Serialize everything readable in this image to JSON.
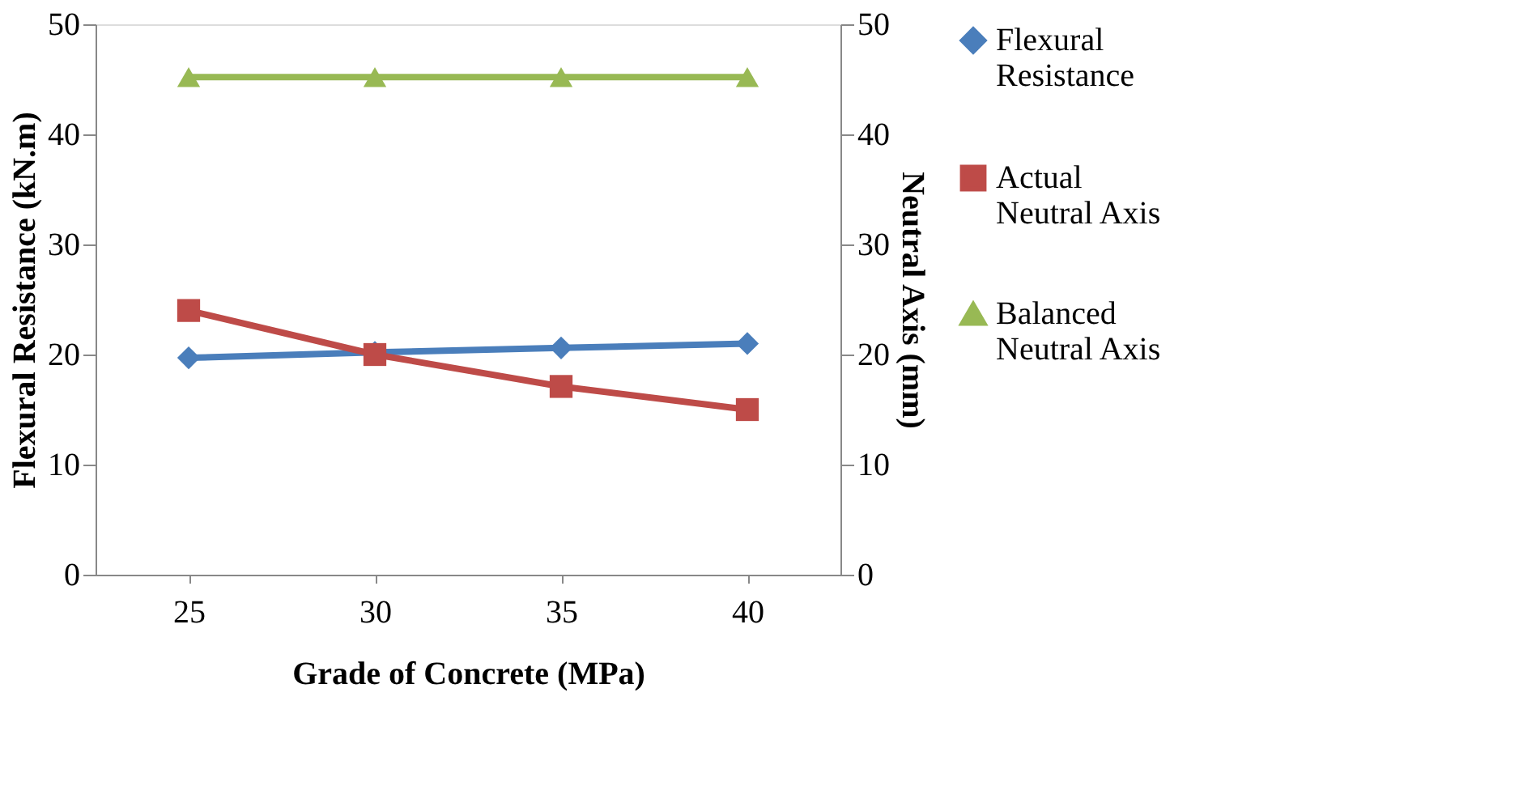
{
  "chart_data": {
    "type": "line",
    "xlabel": "Grade of Concrete (MPa)",
    "ylabel": "Flexural Resistance (kN.m)",
    "y2label": "Neutral Axis (mm)",
    "categories": [
      "25",
      "30",
      "35",
      "40"
    ],
    "series": [
      {
        "name": "Flexural Resistance",
        "color": "#4a7ebb",
        "marker": "diamond",
        "values": [
          19.7,
          20.2,
          20.6,
          21.0
        ]
      },
      {
        "name": "Actual Neutral Axis",
        "color": "#be4b48",
        "marker": "square",
        "axis": "y2",
        "values": [
          24.0,
          20.0,
          17.1,
          15.0
        ]
      },
      {
        "name": "Balanced Neutral Axis",
        "color": "#98b954",
        "marker": "triangle",
        "axis": "y2",
        "values": [
          45.2,
          45.2,
          45.2,
          45.2
        ]
      }
    ],
    "ylim": [
      0,
      50
    ],
    "yticks": [
      0,
      10,
      20,
      30,
      40,
      50
    ],
    "y2lim": [
      0,
      50
    ],
    "y2ticks": [
      0,
      10,
      20,
      30,
      40,
      50
    ],
    "grid": false,
    "legend": "right",
    "line_style": "solid"
  }
}
